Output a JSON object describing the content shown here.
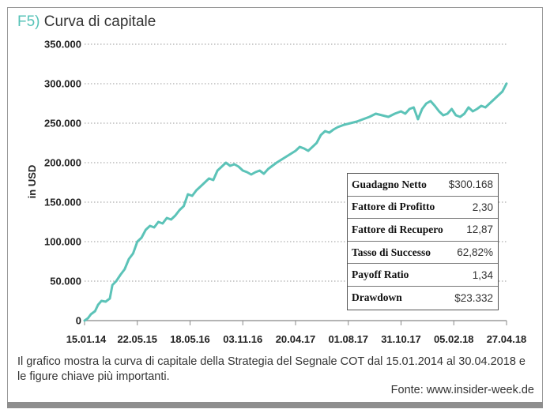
{
  "title": {
    "prefix": "F5)",
    "text": "Curva di capitale"
  },
  "colors": {
    "line": "#5cc3b8",
    "accent": "#57c3b8",
    "axis": "#888888"
  },
  "chart_data": {
    "type": "line",
    "ylabel": "in USD",
    "ylim": [
      0,
      350000
    ],
    "yticks": [
      0,
      50000,
      100000,
      150000,
      200000,
      250000,
      300000,
      350000
    ],
    "ytick_labels": [
      "0",
      "50.000",
      "100.000",
      "150.000",
      "200.000",
      "250.000",
      "300.000",
      "350.000"
    ],
    "xtick_labels": [
      "15.01.14",
      "22.05.15",
      "18.05.16",
      "03.11.16",
      "20.04.17",
      "01.08.17",
      "31.10.17",
      "05.02.18",
      "27.04.18"
    ],
    "x_range": [
      "2014-01-15",
      "2018-04-30"
    ],
    "series": [
      {
        "values": [
          [
            0.0,
            0
          ],
          [
            0.008,
            3000
          ],
          [
            0.015,
            8000
          ],
          [
            0.025,
            12000
          ],
          [
            0.032,
            20000
          ],
          [
            0.04,
            25000
          ],
          [
            0.05,
            24000
          ],
          [
            0.06,
            28000
          ],
          [
            0.066,
            45000
          ],
          [
            0.075,
            50000
          ],
          [
            0.085,
            58000
          ],
          [
            0.095,
            65000
          ],
          [
            0.105,
            78000
          ],
          [
            0.115,
            85000
          ],
          [
            0.125,
            100000
          ],
          [
            0.135,
            105000
          ],
          [
            0.145,
            115000
          ],
          [
            0.155,
            120000
          ],
          [
            0.165,
            118000
          ],
          [
            0.175,
            125000
          ],
          [
            0.185,
            123000
          ],
          [
            0.195,
            130000
          ],
          [
            0.205,
            128000
          ],
          [
            0.215,
            133000
          ],
          [
            0.225,
            140000
          ],
          [
            0.235,
            145000
          ],
          [
            0.245,
            160000
          ],
          [
            0.255,
            158000
          ],
          [
            0.265,
            165000
          ],
          [
            0.275,
            170000
          ],
          [
            0.285,
            175000
          ],
          [
            0.295,
            180000
          ],
          [
            0.305,
            178000
          ],
          [
            0.315,
            190000
          ],
          [
            0.325,
            195000
          ],
          [
            0.335,
            200000
          ],
          [
            0.345,
            196000
          ],
          [
            0.355,
            198000
          ],
          [
            0.365,
            195000
          ],
          [
            0.375,
            190000
          ],
          [
            0.385,
            188000
          ],
          [
            0.395,
            185000
          ],
          [
            0.405,
            188000
          ],
          [
            0.415,
            190000
          ],
          [
            0.425,
            186000
          ],
          [
            0.435,
            192000
          ],
          [
            0.445,
            196000
          ],
          [
            0.455,
            200000
          ],
          [
            0.47,
            205000
          ],
          [
            0.485,
            210000
          ],
          [
            0.5,
            215000
          ],
          [
            0.51,
            220000
          ],
          [
            0.52,
            218000
          ],
          [
            0.53,
            215000
          ],
          [
            0.54,
            220000
          ],
          [
            0.55,
            225000
          ],
          [
            0.56,
            235000
          ],
          [
            0.57,
            240000
          ],
          [
            0.58,
            238000
          ],
          [
            0.59,
            242000
          ],
          [
            0.6,
            245000
          ],
          [
            0.615,
            248000
          ],
          [
            0.63,
            250000
          ],
          [
            0.645,
            252000
          ],
          [
            0.66,
            255000
          ],
          [
            0.675,
            258000
          ],
          [
            0.69,
            262000
          ],
          [
            0.705,
            260000
          ],
          [
            0.72,
            258000
          ],
          [
            0.735,
            262000
          ],
          [
            0.75,
            265000
          ],
          [
            0.76,
            262000
          ],
          [
            0.77,
            268000
          ],
          [
            0.78,
            270000
          ],
          [
            0.79,
            255000
          ],
          [
            0.8,
            268000
          ],
          [
            0.81,
            275000
          ],
          [
            0.82,
            278000
          ],
          [
            0.83,
            272000
          ],
          [
            0.84,
            265000
          ],
          [
            0.85,
            260000
          ],
          [
            0.86,
            262000
          ],
          [
            0.87,
            268000
          ],
          [
            0.88,
            260000
          ],
          [
            0.89,
            258000
          ],
          [
            0.9,
            262000
          ],
          [
            0.91,
            270000
          ],
          [
            0.92,
            265000
          ],
          [
            0.93,
            268000
          ],
          [
            0.94,
            272000
          ],
          [
            0.95,
            270000
          ],
          [
            0.96,
            275000
          ],
          [
            0.97,
            280000
          ],
          [
            0.98,
            285000
          ],
          [
            0.99,
            290000
          ],
          [
            1.0,
            300168
          ]
        ]
      }
    ]
  },
  "stats": [
    {
      "label": "Guadagno Netto",
      "value": "$300.168"
    },
    {
      "label": "Fattore di Profitto",
      "value": "2,30"
    },
    {
      "label": "Fattore di Recupero",
      "value": "12,87"
    },
    {
      "label": "Tasso di Successo",
      "value": "62,82%"
    },
    {
      "label": "Payoff Ratio",
      "value": "1,34"
    },
    {
      "label": "Drawdown",
      "value": "$23.332"
    }
  ],
  "caption": "Il grafico mostra la curva di capitale della Strategia del Segnale COT dal 15.01.2014 al 30.04.2018 e le figure chiave più importanti.",
  "source": "Fonte: www.insider-week.de"
}
